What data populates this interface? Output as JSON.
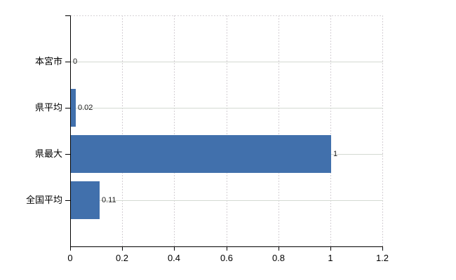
{
  "chart_data": {
    "type": "bar",
    "orientation": "horizontal",
    "title": "",
    "xlabel": "",
    "ylabel": "",
    "categories": [
      "本宮市",
      "県平均",
      "県最大",
      "全国平均"
    ],
    "values": [
      0,
      0.02,
      1,
      0.11
    ],
    "value_labels": [
      "0",
      "0.02",
      "1",
      "0.11"
    ],
    "xlim": [
      0,
      1.2
    ],
    "x_ticks": [
      0,
      0.2,
      0.4,
      0.6,
      0.8,
      1,
      1.2
    ],
    "x_tick_labels": [
      "0",
      "0.2",
      "0.4",
      "0.6",
      "0.8",
      "1",
      "1.2"
    ],
    "grid": "on",
    "legend": "none",
    "colors": {
      "bar": "#4170ac",
      "axis": "#000000",
      "grid_dashed": "#d3ced3",
      "grid_solid": "#d4d9d2",
      "value_label": "#1a1a1a",
      "category_label": "#000000",
      "tick_label": "#000000",
      "background": "#ffffff"
    }
  }
}
